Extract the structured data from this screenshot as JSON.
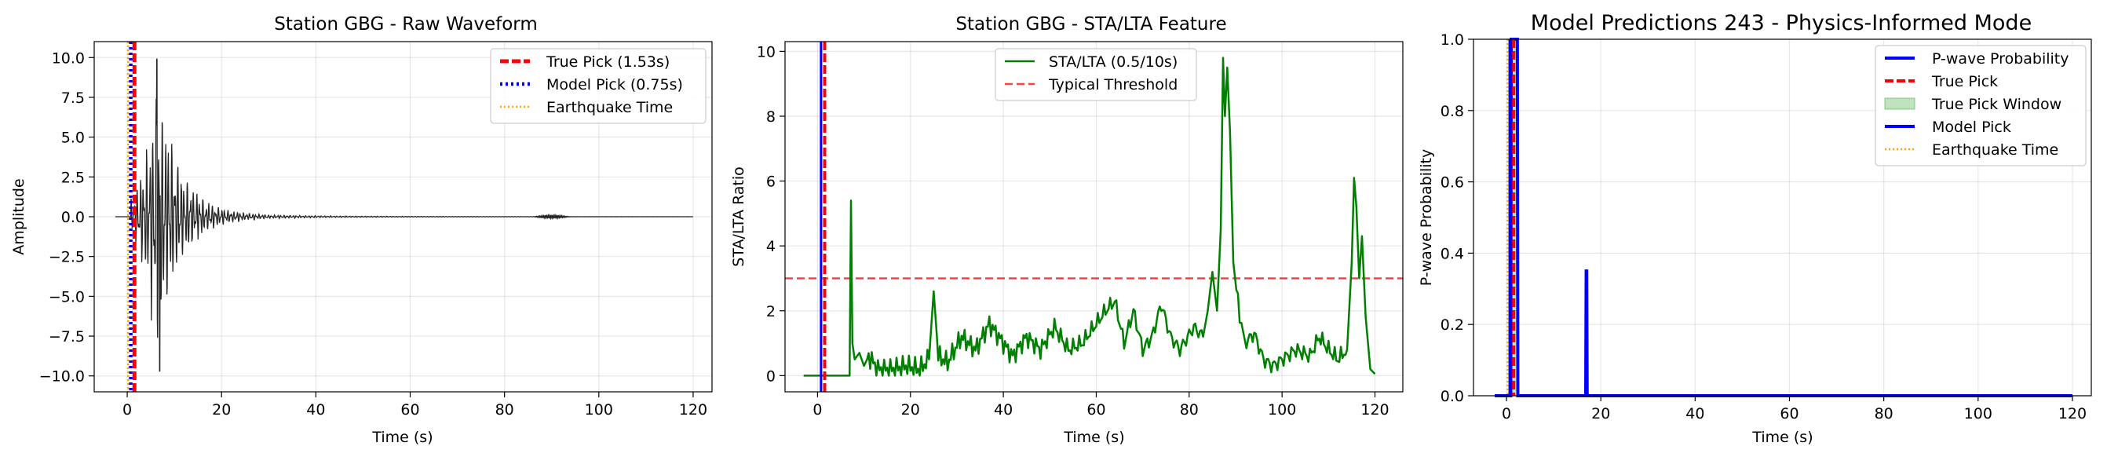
{
  "chart_data": [
    {
      "type": "line",
      "title": "Station GBG - Raw Waveform",
      "xlabel": "Time (s)",
      "ylabel": "Amplitude",
      "xlim": [
        -7,
        124
      ],
      "ylim": [
        -11,
        11
      ],
      "xticks": [
        0,
        20,
        40,
        60,
        80,
        100,
        120
      ],
      "xtick_labels": [
        "0",
        "20",
        "40",
        "60",
        "80",
        "100",
        "120"
      ],
      "yticks": [
        -10,
        -7.5,
        -5,
        -2.5,
        0,
        2.5,
        5,
        7.5,
        10
      ],
      "ytick_labels": [
        "−10.0",
        "−7.5",
        "−5.0",
        "−2.5",
        "0.0",
        "2.5",
        "5.0",
        "7.5",
        "10.0"
      ],
      "grid": true,
      "legend_position": "top-right",
      "series": [
        {
          "name": "",
          "color": "#000000",
          "style": "waveform",
          "t_start": -2.5,
          "t_end": 120,
          "onset": 0.75,
          "peak_time": 6.3,
          "peak_amplitude": 9.9,
          "min_amplitude": -9.7
        }
      ],
      "vlines": [
        {
          "name": "True Pick (1.53s)",
          "x": 1.53,
          "color": "#ff0000",
          "dash": "dashed"
        },
        {
          "name": "Model Pick (0.75s)",
          "x": 0.75,
          "color": "#0000ff",
          "dash": "dotted"
        },
        {
          "name": "Earthquake Time",
          "x": 0.2,
          "color": "#ffa500",
          "dash": "dotted"
        }
      ]
    },
    {
      "type": "line",
      "title": "Station GBG - STA/LTA Feature",
      "xlabel": "Time (s)",
      "ylabel": "STA/LTA Ratio",
      "xlim": [
        -7,
        126
      ],
      "ylim": [
        -0.5,
        10.3
      ],
      "xticks": [
        0,
        20,
        40,
        60,
        80,
        100,
        120
      ],
      "xtick_labels": [
        "0",
        "20",
        "40",
        "60",
        "80",
        "100",
        "120"
      ],
      "yticks": [
        0,
        2,
        4,
        6,
        8,
        10
      ],
      "ytick_labels": [
        "0",
        "2",
        "4",
        "6",
        "8",
        "10"
      ],
      "grid": true,
      "legend_position": "top-center",
      "series": [
        {
          "name": "STA/LTA (0.5/10s)",
          "color": "#008000",
          "key_points": [
            [
              -3,
              0
            ],
            [
              6.9,
              0
            ],
            [
              7.2,
              5.4
            ],
            [
              7.5,
              1
            ],
            [
              8,
              0.5
            ],
            [
              9,
              0.7
            ],
            [
              10,
              0.3
            ],
            [
              11,
              0.6
            ],
            [
              13,
              0.2
            ],
            [
              16,
              0.2
            ],
            [
              19,
              0.3
            ],
            [
              22,
              0.2
            ],
            [
              24,
              0.5
            ],
            [
              25,
              2.6
            ],
            [
              26,
              0.6
            ],
            [
              28,
              0.4
            ],
            [
              31,
              1.2
            ],
            [
              34,
              0.8
            ],
            [
              37,
              1.6
            ],
            [
              39,
              1.2
            ],
            [
              42,
              0.6
            ],
            [
              45,
              1.2
            ],
            [
              48,
              0.8
            ],
            [
              51,
              1.5
            ],
            [
              54,
              0.8
            ],
            [
              57,
              1.0
            ],
            [
              60,
              1.6
            ],
            [
              62,
              2.0
            ],
            [
              64,
              2.3
            ],
            [
              66,
              1.0
            ],
            [
              68,
              2.0
            ],
            [
              70,
              0.8
            ],
            [
              72,
              1.2
            ],
            [
              74,
              2.2
            ],
            [
              76,
              1.2
            ],
            [
              78,
              0.8
            ],
            [
              81,
              1.5
            ],
            [
              83,
              1.2
            ],
            [
              84,
              2.0
            ],
            [
              85,
              3.2
            ],
            [
              86,
              2.0
            ],
            [
              86.8,
              4.5
            ],
            [
              87.3,
              9.8
            ],
            [
              87.7,
              8.0
            ],
            [
              88.2,
              9.5
            ],
            [
              88.8,
              7.5
            ],
            [
              89.5,
              3.5
            ],
            [
              90.5,
              2.2
            ],
            [
              92,
              1.0
            ],
            [
              94,
              1.3
            ],
            [
              96,
              0.5
            ],
            [
              98,
              0.3
            ],
            [
              100,
              0.5
            ],
            [
              103,
              0.8
            ],
            [
              106,
              0.6
            ],
            [
              108,
              1.2
            ],
            [
              110,
              0.8
            ],
            [
              112,
              0.5
            ],
            [
              114,
              0.8
            ],
            [
              115,
              3.5
            ],
            [
              115.5,
              6.1
            ],
            [
              116,
              5.2
            ],
            [
              116.6,
              3.0
            ],
            [
              117.2,
              4.3
            ],
            [
              118,
              1.8
            ],
            [
              119,
              0.2
            ],
            [
              120,
              0.05
            ]
          ]
        },
        {
          "name": "Typical Threshold",
          "color": "#ff0000",
          "dash": "dashed",
          "y": 3
        }
      ],
      "vlines": [
        {
          "name": "",
          "x": 0.75,
          "color": "#0000ff",
          "dash": "solid"
        },
        {
          "name": "",
          "x": 1.53,
          "color": "#ff0000",
          "dash": "dashed"
        }
      ]
    },
    {
      "type": "line",
      "title": "Model Predictions 243 - Physics-Informed Mode",
      "xlabel": "Time (s)",
      "ylabel": "P-wave Probability",
      "xlim": [
        -7,
        124
      ],
      "ylim": [
        0,
        1
      ],
      "xticks": [
        0,
        20,
        40,
        60,
        80,
        100,
        120
      ],
      "xtick_labels": [
        "0",
        "20",
        "40",
        "60",
        "80",
        "100",
        "120"
      ],
      "yticks": [
        0,
        0.2,
        0.4,
        0.6,
        0.8,
        1.0
      ],
      "ytick_labels": [
        "0.0",
        "0.2",
        "0.4",
        "0.6",
        "0.8",
        "1.0"
      ],
      "grid": true,
      "legend_position": "top-right",
      "series": [
        {
          "name": "P-wave Probability",
          "color": "#0000ff",
          "key_points": [
            [
              -2.5,
              0
            ],
            [
              0.9,
              0
            ],
            [
              1.0,
              1.0
            ],
            [
              2.3,
              1.0
            ],
            [
              2.4,
              0
            ],
            [
              16.8,
              0
            ],
            [
              16.9,
              0.35
            ],
            [
              17.0,
              0.35
            ],
            [
              17.1,
              0
            ],
            [
              120,
              0
            ]
          ]
        }
      ],
      "span": {
        "name": "True Pick Window",
        "x0": 1.03,
        "x1": 2.03,
        "color": "#2ca02c"
      },
      "vlines": [
        {
          "name": "True Pick",
          "x": 1.53,
          "color": "#ff0000",
          "dash": "dashed"
        },
        {
          "name": "Model Pick",
          "x": 0.75,
          "color": "#0000ff",
          "dash": "solid"
        },
        {
          "name": "Earthquake Time",
          "x": 0.2,
          "color": "#ffa500",
          "dash": "dotted"
        }
      ]
    }
  ]
}
